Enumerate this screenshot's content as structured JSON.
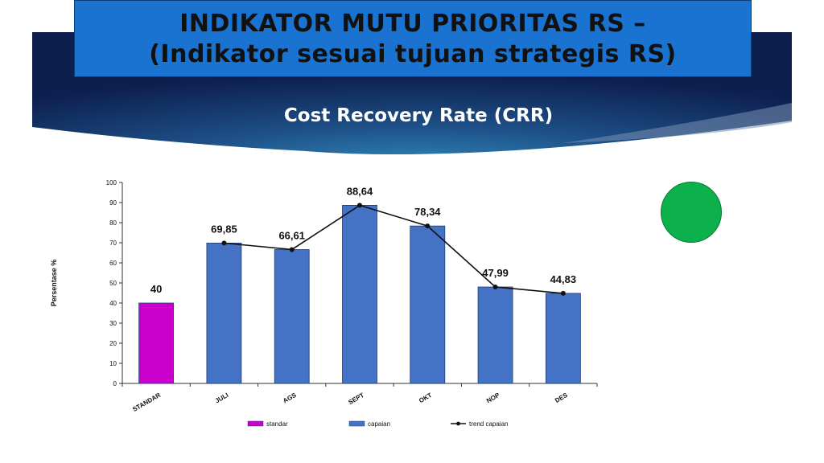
{
  "slide": {
    "title_line1": "INDIKATOR  MUTU PRIORITAS RS –",
    "title_line2": "(Indikator sesuai tujuan strategis RS)",
    "subtitle": "Cost Recovery Rate (CRR)",
    "status_color": "#0db14b"
  },
  "chart_data": {
    "type": "bar",
    "categories": [
      "STANDAR",
      "JULI",
      "AGS",
      "SEPT",
      "OKT",
      "NOP",
      "DES"
    ],
    "series": [
      {
        "name": "standar",
        "values": [
          40,
          null,
          null,
          null,
          null,
          null,
          null
        ],
        "color": "#cc00cc",
        "kind": "bar"
      },
      {
        "name": "capaian",
        "values": [
          null,
          69.85,
          66.61,
          88.64,
          78.34,
          47.99,
          44.83
        ],
        "color": "#4472c4",
        "kind": "bar"
      },
      {
        "name": "trend capaian",
        "values": [
          null,
          69.85,
          66.61,
          88.64,
          78.34,
          47.99,
          44.83
        ],
        "color": "#111111",
        "kind": "line"
      }
    ],
    "data_labels": [
      "40",
      "69,85",
      "66,61",
      "88,64",
      "78,34",
      "47,99",
      "44,83"
    ],
    "ylabel": "Persentase %",
    "xlabel": "",
    "ylim": [
      0,
      100
    ],
    "yticks": [
      0,
      10,
      20,
      30,
      40,
      50,
      60,
      70,
      80,
      90,
      100
    ],
    "grid": false,
    "legend_position": "bottom"
  }
}
